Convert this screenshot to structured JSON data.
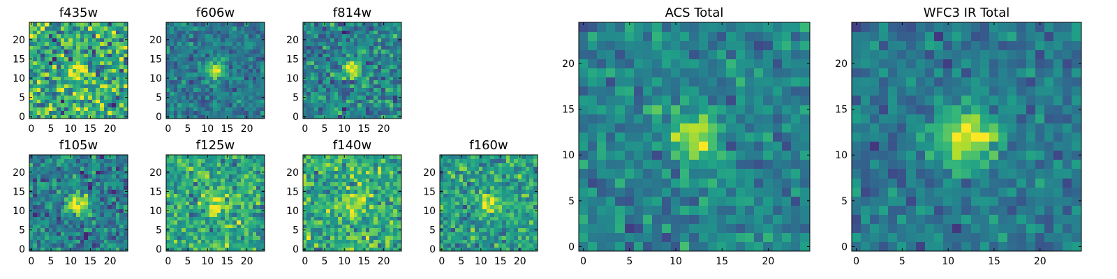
{
  "chart_data": [
    {
      "type": "heatmap",
      "title": "f435w",
      "grid_size": 25,
      "xlim": [
        0,
        25
      ],
      "ylim": [
        0,
        25
      ],
      "xticks": [
        "0",
        "5",
        "10",
        "15",
        "20"
      ],
      "yticks": [
        "0",
        "5",
        "10",
        "15",
        "20"
      ],
      "colormap": "viridis",
      "source_center": [
        12,
        12
      ],
      "source_width": 1.6,
      "peak_level": 1.0,
      "background_level": 0.62,
      "noise_level": 0.2
    },
    {
      "type": "heatmap",
      "title": "f606w",
      "grid_size": 25,
      "xlim": [
        0,
        25
      ],
      "ylim": [
        0,
        25
      ],
      "xticks": [
        "0",
        "5",
        "10",
        "15",
        "20"
      ],
      "yticks": [
        "0",
        "5",
        "10",
        "15",
        "20"
      ],
      "colormap": "viridis",
      "source_center": [
        12,
        12
      ],
      "source_width": 1.6,
      "peak_level": 1.0,
      "background_level": 0.4,
      "noise_level": 0.1
    },
    {
      "type": "heatmap",
      "title": "f814w",
      "grid_size": 25,
      "xlim": [
        0,
        25
      ],
      "ylim": [
        0,
        25
      ],
      "xticks": [
        "0",
        "5",
        "10",
        "15",
        "20"
      ],
      "yticks": [
        "0",
        "5",
        "10",
        "15",
        "20"
      ],
      "colormap": "viridis",
      "source_center": [
        12,
        12
      ],
      "source_width": 1.6,
      "peak_level": 1.0,
      "background_level": 0.45,
      "noise_level": 0.14
    },
    {
      "type": "heatmap",
      "title": "f105w",
      "grid_size": 25,
      "xlim": [
        0,
        25
      ],
      "ylim": [
        0,
        25
      ],
      "xticks": [
        "0",
        "5",
        "10",
        "15",
        "20"
      ],
      "yticks": [
        "0",
        "5",
        "10",
        "15",
        "20"
      ],
      "colormap": "viridis",
      "source_center": [
        12,
        12
      ],
      "source_width": 2.0,
      "peak_level": 1.0,
      "background_level": 0.42,
      "noise_level": 0.13
    },
    {
      "type": "heatmap",
      "title": "f125w",
      "grid_size": 25,
      "xlim": [
        0,
        25
      ],
      "ylim": [
        0,
        25
      ],
      "xticks": [
        "0",
        "5",
        "10",
        "15",
        "20"
      ],
      "yticks": [
        "0",
        "5",
        "10",
        "15",
        "20"
      ],
      "colormap": "viridis",
      "source_center": [
        12,
        12
      ],
      "source_width": 2.0,
      "peak_level": 0.95,
      "background_level": 0.6,
      "noise_level": 0.14
    },
    {
      "type": "heatmap",
      "title": "f140w",
      "grid_size": 25,
      "xlim": [
        0,
        25
      ],
      "ylim": [
        0,
        25
      ],
      "xticks": [
        "0",
        "5",
        "10",
        "15",
        "20"
      ],
      "yticks": [
        "0",
        "5",
        "10",
        "15",
        "20"
      ],
      "colormap": "viridis",
      "source_center": [
        12,
        12
      ],
      "source_width": 2.2,
      "peak_level": 0.95,
      "background_level": 0.62,
      "noise_level": 0.14
    },
    {
      "type": "heatmap",
      "title": "f160w",
      "grid_size": 25,
      "xlim": [
        0,
        25
      ],
      "ylim": [
        0,
        25
      ],
      "xticks": [
        "0",
        "5",
        "10",
        "15",
        "20"
      ],
      "yticks": [
        "0",
        "5",
        "10",
        "15",
        "20"
      ],
      "colormap": "viridis",
      "source_center": [
        12,
        12
      ],
      "source_width": 1.8,
      "peak_level": 1.0,
      "background_level": 0.55,
      "noise_level": 0.13
    },
    {
      "type": "heatmap",
      "title": "ACS Total",
      "grid_size": 25,
      "xlim": [
        0,
        25
      ],
      "ylim": [
        0,
        25
      ],
      "xticks": [
        "0",
        "5",
        "10",
        "15",
        "20"
      ],
      "yticks": [
        "0",
        "5",
        "10",
        "15",
        "20"
      ],
      "colormap": "viridis",
      "source_center": [
        12,
        12
      ],
      "source_width": 1.7,
      "peak_level": 1.0,
      "background_level": 0.45,
      "noise_level": 0.1
    },
    {
      "type": "heatmap",
      "title": "WFC3 IR Total",
      "grid_size": 25,
      "xlim": [
        0,
        25
      ],
      "ylim": [
        0,
        25
      ],
      "xticks": [
        "0",
        "5",
        "10",
        "15",
        "20"
      ],
      "yticks": [
        "0",
        "5",
        "10",
        "15",
        "20"
      ],
      "colormap": "viridis",
      "source_center": [
        12,
        12
      ],
      "source_width": 2.3,
      "peak_level": 1.0,
      "background_level": 0.4,
      "noise_level": 0.09
    }
  ]
}
